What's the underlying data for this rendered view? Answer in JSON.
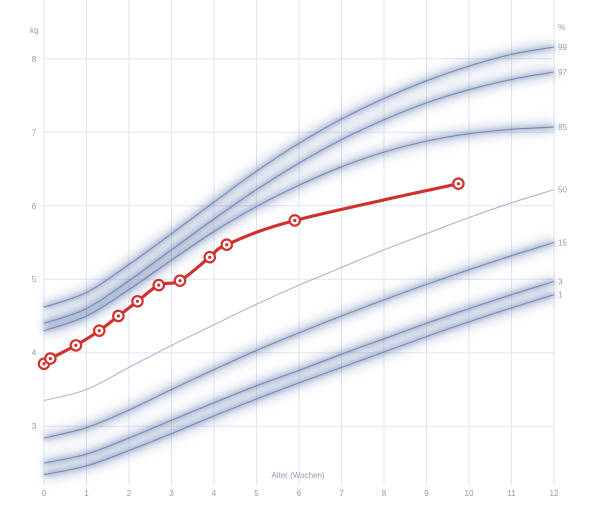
{
  "chart_data": {
    "type": "line",
    "title": "",
    "xlabel": "Alter (Wochen)",
    "ylabel": "kg",
    "y2label": "%",
    "xlim": [
      0,
      12
    ],
    "ylim": [
      2.2,
      8.8
    ],
    "x_ticks": [
      0,
      1,
      2,
      3,
      4,
      5,
      6,
      7,
      8,
      9,
      10,
      11,
      12
    ],
    "y_ticks": [
      3,
      4,
      5,
      6,
      7,
      8
    ],
    "grid": true,
    "percentile_curves": [
      {
        "name": "99",
        "x": [
          0,
          1,
          2,
          3,
          4,
          5,
          6,
          7,
          8,
          9,
          10,
          11,
          12
        ],
        "y": [
          4.62,
          4.82,
          5.2,
          5.62,
          6.05,
          6.47,
          6.85,
          7.18,
          7.46,
          7.7,
          7.9,
          8.06,
          8.16
        ]
      },
      {
        "name": "97",
        "x": [
          0,
          1,
          2,
          3,
          4,
          5,
          6,
          7,
          8,
          9,
          10,
          11,
          12
        ],
        "y": [
          4.4,
          4.6,
          4.98,
          5.4,
          5.82,
          6.22,
          6.58,
          6.9,
          7.17,
          7.4,
          7.58,
          7.72,
          7.82
        ]
      },
      {
        "name": "85",
        "x": [
          0,
          1,
          2,
          3,
          4,
          5,
          6,
          7,
          8,
          9,
          10,
          11,
          12
        ],
        "y": [
          4.3,
          4.5,
          4.86,
          5.26,
          5.65,
          5.99,
          6.28,
          6.53,
          6.73,
          6.88,
          6.98,
          7.04,
          7.07
        ]
      },
      {
        "name": "50",
        "x": [
          0,
          1,
          2,
          3,
          4,
          5,
          6,
          7,
          8,
          9,
          10,
          11,
          12
        ],
        "y": [
          3.35,
          3.5,
          3.8,
          4.1,
          4.38,
          4.66,
          4.92,
          5.16,
          5.4,
          5.62,
          5.84,
          6.04,
          6.22
        ]
      },
      {
        "name": "15",
        "x": [
          0,
          1,
          2,
          3,
          4,
          5,
          6,
          7,
          8,
          9,
          10,
          11,
          12
        ],
        "y": [
          2.84,
          2.98,
          3.22,
          3.5,
          3.77,
          4.03,
          4.27,
          4.5,
          4.72,
          4.93,
          5.13,
          5.32,
          5.5
        ]
      },
      {
        "name": "3",
        "x": [
          0,
          1,
          2,
          3,
          4,
          5,
          6,
          7,
          8,
          9,
          10,
          11,
          12
        ],
        "y": [
          2.5,
          2.62,
          2.84,
          3.08,
          3.32,
          3.55,
          3.76,
          3.98,
          4.19,
          4.4,
          4.6,
          4.79,
          4.97
        ]
      },
      {
        "name": "1",
        "x": [
          0,
          1,
          2,
          3,
          4,
          5,
          6,
          7,
          8,
          9,
          10,
          11,
          12
        ],
        "y": [
          2.34,
          2.46,
          2.67,
          2.9,
          3.14,
          3.37,
          3.59,
          3.8,
          4.01,
          4.22,
          4.42,
          4.61,
          4.79
        ]
      }
    ],
    "series": [
      {
        "x": [
          0.0,
          0.15,
          0.75,
          1.3,
          1.75,
          2.2,
          2.7,
          3.2,
          3.9,
          4.3,
          5.9,
          9.75
        ],
        "y": [
          3.85,
          3.92,
          4.1,
          4.3,
          4.5,
          4.7,
          4.92,
          4.98,
          5.3,
          5.47,
          5.8,
          6.3
        ],
        "color": "#d0312d"
      }
    ],
    "colors": {
      "grid": "#dfe6f1",
      "band": "#5a73a6",
      "median": "#a9b7cf",
      "measurement": "#d0312d",
      "label": "#8d9ab0"
    }
  }
}
